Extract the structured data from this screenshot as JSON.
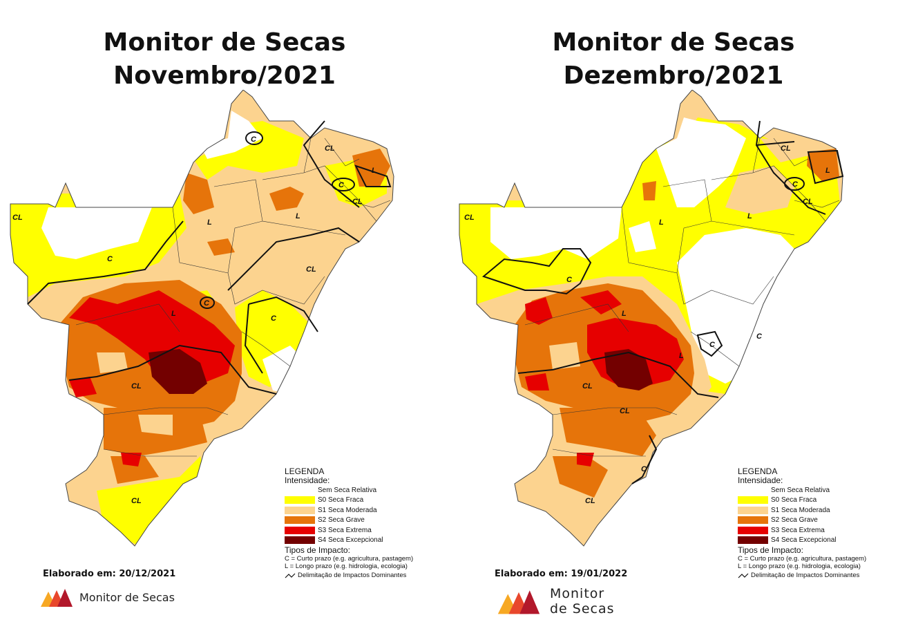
{
  "left": {
    "title_line1": "Monitor de Secas",
    "title_line2": "Novembro/2021",
    "credit": "Elaborado em: 20/12/2021",
    "logo_text": "Monitor de Secas",
    "labels": {
      "c1": "C",
      "cl1": "CL",
      "l1": "L",
      "cl2": "CL",
      "c2": "C",
      "cl3": "CL",
      "l2": "L",
      "l3": "L",
      "cl4": "CL",
      "c3": "C",
      "l4": "L",
      "c4": "C",
      "cl5": "CL",
      "cl6": "CL"
    }
  },
  "right": {
    "title_line1": "Monitor de Secas",
    "title_line2": "Dezembro/2021",
    "credit": "Elaborado em: 19/01/2022",
    "logo_text_line1": "Monitor",
    "logo_text_line2": "de Secas",
    "labels": {
      "cl1": "CL",
      "c1": "C",
      "l1": "L",
      "cl2": "CL",
      "cl3": "CL",
      "l2": "L",
      "l3": "L",
      "c2": "C",
      "l4": "L",
      "c3": "C",
      "c4": "C",
      "l5": "L",
      "cl4": "CL",
      "cl5": "CL",
      "c5": "C",
      "cl6": "CL"
    }
  },
  "legend": {
    "title": "LEGENDA",
    "intensity_label": "Intensidade:",
    "items": [
      {
        "label": "Sem Seca Relativa",
        "color": "#ffffff"
      },
      {
        "label": "S0 Seca Fraca",
        "color": "#ffff00"
      },
      {
        "label": "S1 Seca Moderada",
        "color": "#fcd38f"
      },
      {
        "label": "S2 Seca Grave",
        "color": "#e6740a"
      },
      {
        "label": "S3 Seca Extrema",
        "color": "#e60000"
      },
      {
        "label": "S4 Seca Excepcional",
        "color": "#730000"
      }
    ],
    "impact_title": "Tipos de Impacto:",
    "impact_c": "C = Curto prazo (e.g. agricultura, pastagem)",
    "impact_l": "L = Longo prazo (e.g. hidrologia, ecologia)",
    "impact_line": "Delimitação de Impactos Dominantes"
  }
}
